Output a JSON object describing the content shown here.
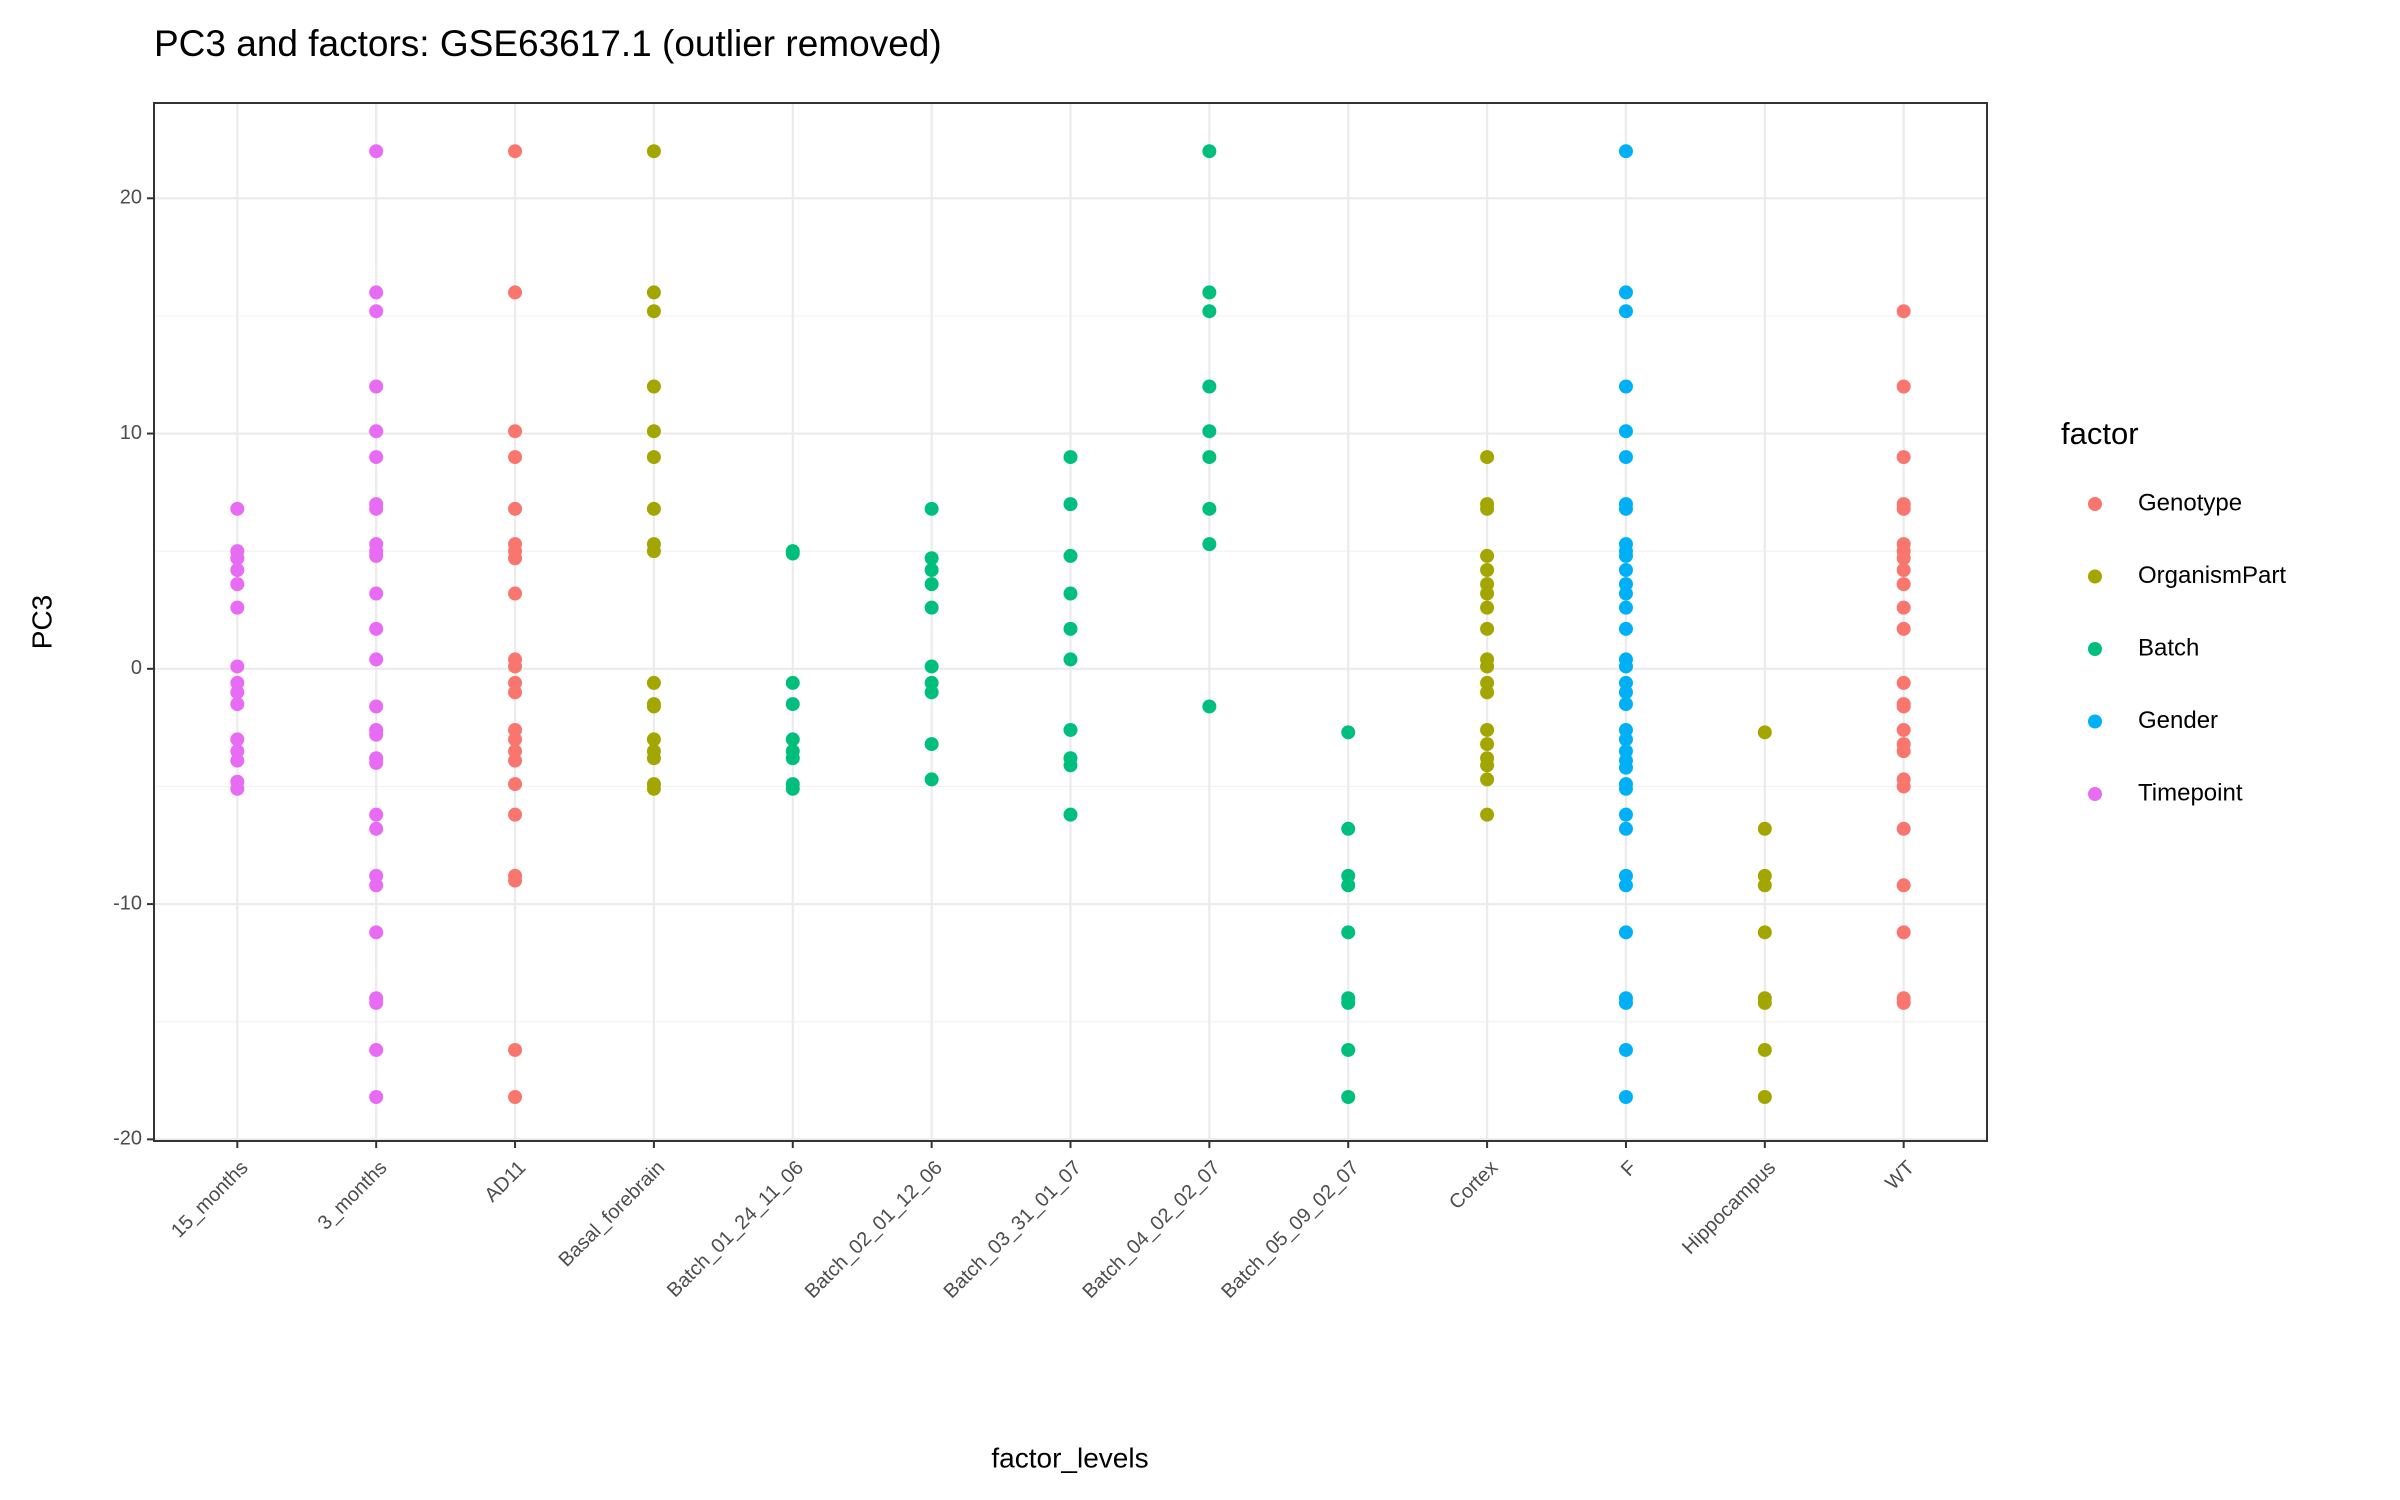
{
  "chart_data": {
    "type": "scatter",
    "title": "PC3 and factors: GSE63617.1 (outlier removed)",
    "x_label": "factor_levels",
    "y_label": "PC3",
    "legend_title": "factor",
    "legend_position": "right",
    "grid": true,
    "categories": [
      "15_months",
      "3_months",
      "AD11",
      "Basal_forebrain",
      "Batch_01_24_11_06",
      "Batch_02_01_12_06",
      "Batch_03_31_01_07",
      "Batch_04_02_02_07",
      "Batch_05_09_02_07",
      "Cortex",
      "F",
      "Hippocampus",
      "WT"
    ],
    "ylim": [
      -20.07,
      24.05
    ],
    "yticks": [
      -20,
      -10,
      0,
      10,
      20
    ],
    "yminorticks": [
      -15,
      -5,
      5,
      15
    ],
    "series": [
      {
        "name": "Genotype",
        "color": "#F8766D",
        "x": [
          "AD11",
          "WT"
        ],
        "values": [
          [
            22,
            16,
            10.1,
            9,
            6.8,
            5.3,
            5,
            4.7,
            3.2,
            0.4,
            0.1,
            -0.6,
            -1,
            -2.6,
            -3,
            -3.5,
            -3.9,
            -4.9,
            -6.2,
            -8.8,
            -9,
            -16.2,
            -18.2
          ],
          [
            15.2,
            12,
            9,
            7,
            6.8,
            5.3,
            5,
            4.7,
            4.2,
            3.6,
            2.6,
            1.7,
            -0.6,
            -1.5,
            -1.6,
            -2.6,
            -3.2,
            -3.5,
            -4.7,
            -5,
            -6.8,
            -9.2,
            -11.2,
            -14,
            -14.2
          ]
        ]
      },
      {
        "name": "OrganismPart",
        "color": "#A3A500",
        "x": [
          "Basal_forebrain",
          "Cortex",
          "Hippocampus"
        ],
        "values": [
          [
            22,
            16,
            15.2,
            12,
            10.1,
            9,
            6.8,
            5.3,
            5,
            -0.6,
            -1.5,
            -1.6,
            -3,
            -3.5,
            -3.8,
            -4.9,
            -5.1
          ],
          [
            9,
            7,
            6.8,
            4.8,
            4.2,
            3.6,
            3.2,
            2.6,
            1.7,
            0.4,
            0.1,
            -0.6,
            -1,
            -2.6,
            -3.2,
            -3.8,
            -4.1,
            -4.7,
            -6.2
          ],
          [
            -2.7,
            -6.8,
            -8.8,
            -9.2,
            -11.2,
            -14,
            -14.2,
            -16.2,
            -18.2
          ]
        ]
      },
      {
        "name": "Batch",
        "color": "#00BF7D",
        "x": [
          "Batch_01_24_11_06",
          "Batch_02_01_12_06",
          "Batch_03_31_01_07",
          "Batch_04_02_02_07",
          "Batch_05_09_02_07"
        ],
        "values": [
          [
            5,
            4.9,
            -0.6,
            -1.5,
            -3,
            -3.5,
            -3.8,
            -4.9,
            -5.1
          ],
          [
            6.8,
            4.7,
            4.2,
            3.6,
            2.6,
            0.1,
            -0.6,
            -1,
            -3.2,
            -4.7
          ],
          [
            9,
            7,
            4.8,
            3.2,
            1.7,
            0.4,
            -2.6,
            -3.8,
            -4.1,
            -6.2
          ],
          [
            22,
            16,
            15.2,
            12,
            10.1,
            9,
            6.8,
            5.3,
            -1.6
          ],
          [
            -2.7,
            -6.8,
            -8.8,
            -9.2,
            -11.2,
            -14,
            -14.2,
            -16.2,
            -18.2
          ]
        ]
      },
      {
        "name": "Gender",
        "color": "#00B0F6",
        "x": [
          "F"
        ],
        "values": [
          [
            22,
            16,
            15.2,
            12,
            10.1,
            9,
            7,
            6.8,
            5.3,
            5,
            4.8,
            4.2,
            3.6,
            3.2,
            2.6,
            1.7,
            0.4,
            0.1,
            -0.6,
            -1,
            -1.5,
            -2.6,
            -3,
            -3.5,
            -3.9,
            -4.2,
            -4.9,
            -5.1,
            -6.2,
            -6.8,
            -8.8,
            -9.2,
            -11.2,
            -14,
            -14.2,
            -16.2,
            -18.2
          ]
        ]
      },
      {
        "name": "Timepoint",
        "color": "#E76BF3",
        "x": [
          "15_months",
          "3_months"
        ],
        "values": [
          [
            6.8,
            5,
            4.7,
            4.2,
            3.6,
            2.6,
            0.1,
            -0.6,
            -1,
            -1.5,
            -3,
            -3.5,
            -3.9,
            -4.8,
            -5.1
          ],
          [
            22,
            16,
            15.2,
            12,
            10.1,
            9,
            7,
            6.8,
            5.3,
            5,
            4.8,
            3.2,
            1.7,
            0.4,
            -1.6,
            -2.6,
            -2.8,
            -3.8,
            -4,
            -6.2,
            -6.8,
            -8.8,
            -9.2,
            -11.2,
            -14,
            -14.2,
            -16.2,
            -18.2
          ]
        ]
      }
    ]
  }
}
